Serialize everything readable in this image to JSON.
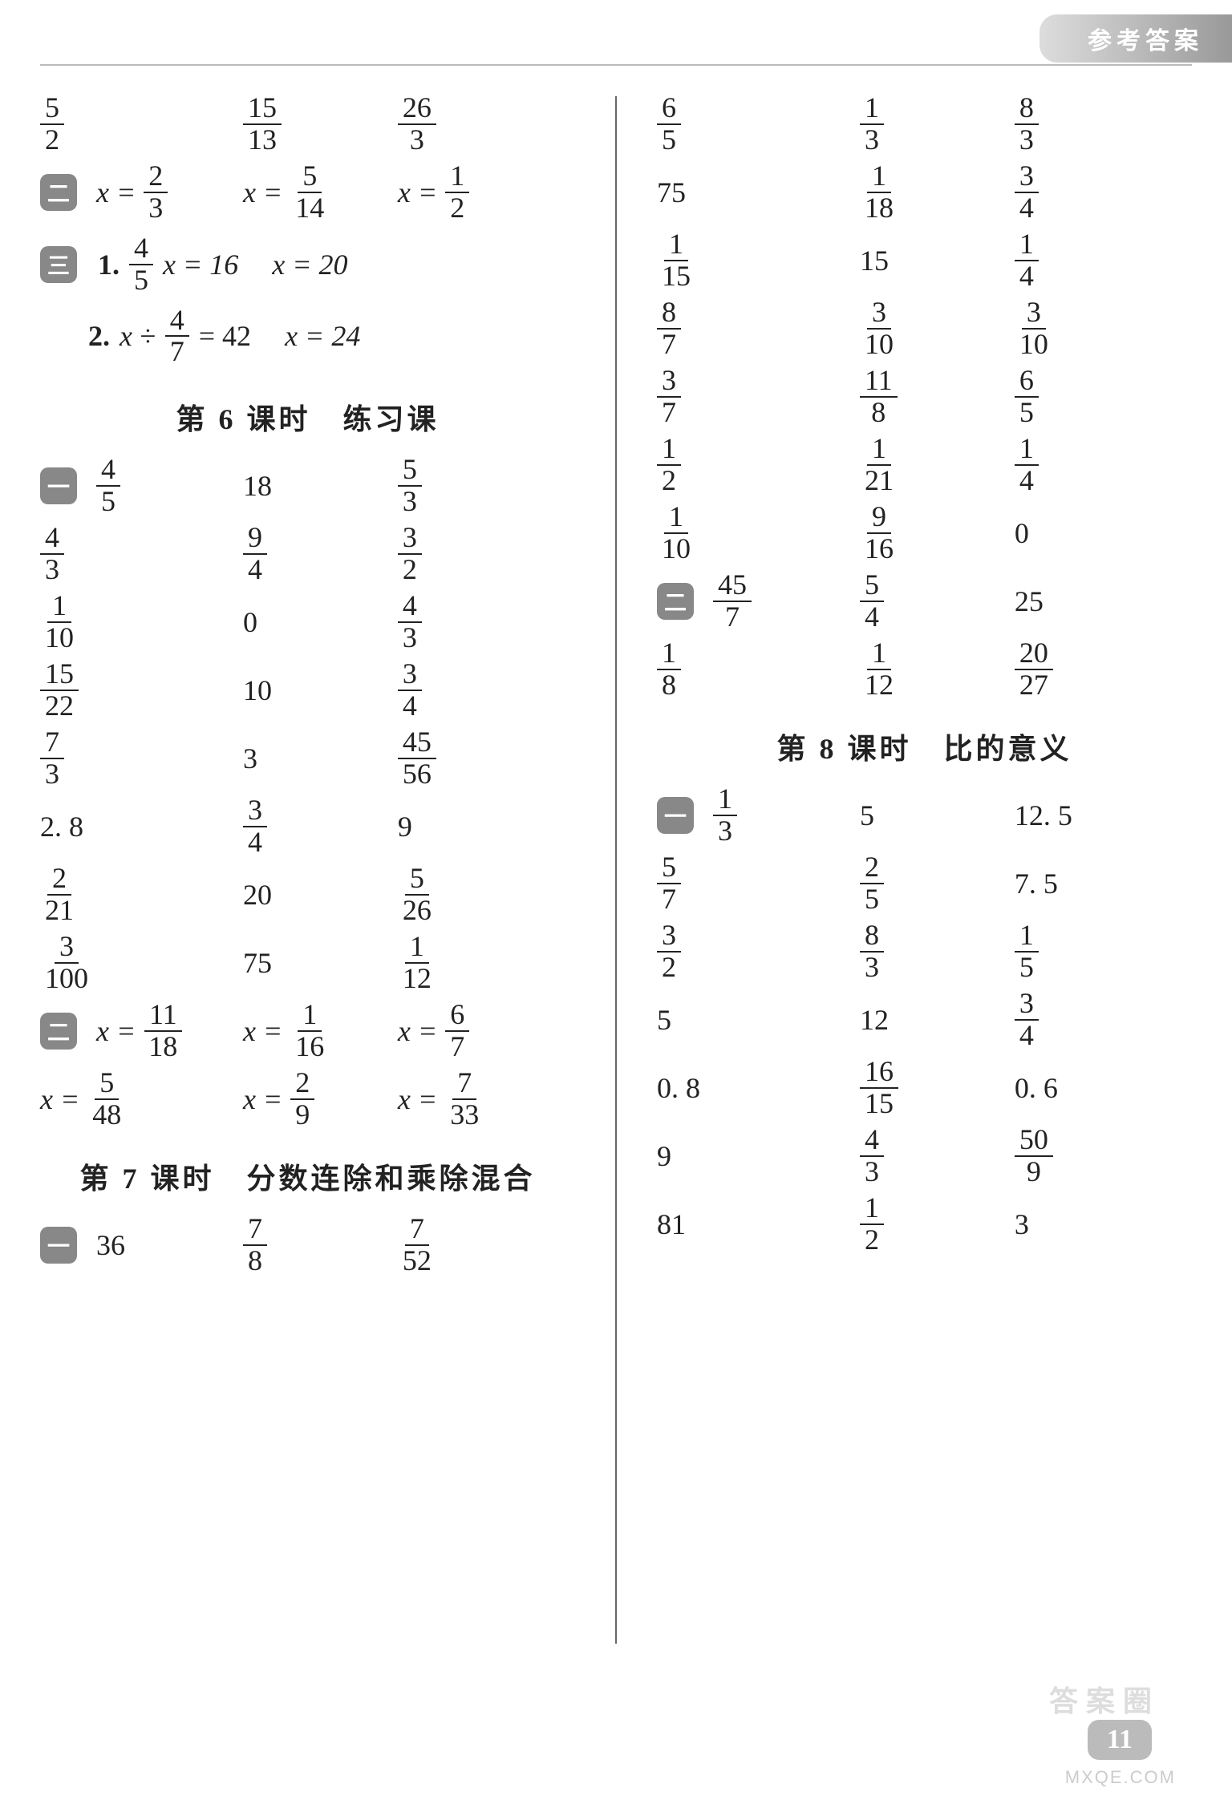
{
  "header": {
    "label": "参考答案"
  },
  "pageNumber": "11",
  "watermark": "MXQE.COM",
  "wm2": "答案圈",
  "sections": {
    "s6": {
      "title": "第 6 课时　练习课"
    },
    "s7": {
      "title": "第 7 课时　分数连除和乘除混合"
    },
    "s8": {
      "title": "第 8 课时　比的意义"
    }
  },
  "left": {
    "topRow": [
      {
        "n": "5",
        "d": "2"
      },
      {
        "n": "15",
        "d": "13"
      },
      {
        "n": "26",
        "d": "3"
      }
    ],
    "eqRow2": {
      "badge": "二",
      "items": [
        {
          "lhs": "x =",
          "n": "2",
          "d": "3"
        },
        {
          "lhs": "x =",
          "n": "5",
          "d": "14"
        },
        {
          "lhs": "x =",
          "n": "1",
          "d": "2"
        }
      ]
    },
    "eq3": {
      "badge": "三",
      "l1": {
        "num": "1.",
        "fn": "4",
        "fd": "5",
        "mid": "x = 16",
        "res": "x = 20"
      },
      "l2": {
        "num": "2.",
        "pre": "x ÷",
        "fn": "4",
        "fd": "7",
        "mid": "= 42",
        "res": "x = 24"
      }
    },
    "grid6": {
      "badge": "一",
      "rows": [
        [
          {
            "n": "4",
            "d": "5"
          },
          {
            "t": "18"
          },
          {
            "n": "5",
            "d": "3"
          }
        ],
        [
          {
            "n": "4",
            "d": "3"
          },
          {
            "n": "9",
            "d": "4"
          },
          {
            "n": "3",
            "d": "2"
          }
        ],
        [
          {
            "n": "1",
            "d": "10"
          },
          {
            "t": "0"
          },
          {
            "n": "4",
            "d": "3"
          }
        ],
        [
          {
            "n": "15",
            "d": "22"
          },
          {
            "t": "10"
          },
          {
            "n": "3",
            "d": "4"
          }
        ],
        [
          {
            "n": "7",
            "d": "3"
          },
          {
            "t": "3"
          },
          {
            "n": "45",
            "d": "56"
          }
        ],
        [
          {
            "t": "2. 8"
          },
          {
            "n": "3",
            "d": "4"
          },
          {
            "t": "9"
          }
        ],
        [
          {
            "n": "2",
            "d": "21"
          },
          {
            "t": "20"
          },
          {
            "n": "5",
            "d": "26"
          }
        ],
        [
          {
            "n": "3",
            "d": "100"
          },
          {
            "t": "75"
          },
          {
            "n": "1",
            "d": "12"
          }
        ]
      ]
    },
    "eqRow6b": {
      "badge": "二",
      "rows": [
        [
          {
            "lhs": "x =",
            "n": "11",
            "d": "18"
          },
          {
            "lhs": "x =",
            "n": "1",
            "d": "16"
          },
          {
            "lhs": "x =",
            "n": "6",
            "d": "7"
          }
        ],
        [
          {
            "lhs": "x =",
            "n": "5",
            "d": "48"
          },
          {
            "lhs": "x =",
            "n": "2",
            "d": "9"
          },
          {
            "lhs": "x =",
            "n": "7",
            "d": "33"
          }
        ]
      ]
    },
    "grid7": {
      "badge": "一",
      "rows": [
        [
          {
            "t": "36"
          },
          {
            "n": "7",
            "d": "8"
          },
          {
            "n": "7",
            "d": "52"
          }
        ]
      ]
    }
  },
  "right": {
    "grid7r": {
      "rows": [
        [
          {
            "n": "6",
            "d": "5"
          },
          {
            "n": "1",
            "d": "3"
          },
          {
            "n": "8",
            "d": "3"
          }
        ],
        [
          {
            "t": "75"
          },
          {
            "n": "1",
            "d": "18"
          },
          {
            "n": "3",
            "d": "4"
          }
        ],
        [
          {
            "n": "1",
            "d": "15"
          },
          {
            "t": "15"
          },
          {
            "n": "1",
            "d": "4"
          }
        ],
        [
          {
            "n": "8",
            "d": "7"
          },
          {
            "n": "3",
            "d": "10"
          },
          {
            "n": "3",
            "d": "10"
          }
        ],
        [
          {
            "n": "3",
            "d": "7"
          },
          {
            "n": "11",
            "d": "8"
          },
          {
            "n": "6",
            "d": "5"
          }
        ],
        [
          {
            "n": "1",
            "d": "2"
          },
          {
            "n": "1",
            "d": "21"
          },
          {
            "n": "1",
            "d": "4"
          }
        ],
        [
          {
            "n": "1",
            "d": "10"
          },
          {
            "n": "9",
            "d": "16"
          },
          {
            "t": "0"
          }
        ]
      ]
    },
    "eq7b": {
      "badge": "二",
      "rows": [
        [
          {
            "n": "45",
            "d": "7"
          },
          {
            "n": "5",
            "d": "4"
          },
          {
            "t": "25"
          }
        ],
        [
          {
            "n": "1",
            "d": "8"
          },
          {
            "n": "1",
            "d": "12"
          },
          {
            "n": "20",
            "d": "27"
          }
        ]
      ]
    },
    "grid8": {
      "badge": "一",
      "rows": [
        [
          {
            "n": "1",
            "d": "3"
          },
          {
            "t": "5"
          },
          {
            "t": "12. 5"
          }
        ],
        [
          {
            "n": "5",
            "d": "7"
          },
          {
            "n": "2",
            "d": "5"
          },
          {
            "t": "7. 5"
          }
        ],
        [
          {
            "n": "3",
            "d": "2"
          },
          {
            "n": "8",
            "d": "3"
          },
          {
            "n": "1",
            "d": "5"
          }
        ],
        [
          {
            "t": "5"
          },
          {
            "t": "12"
          },
          {
            "n": "3",
            "d": "4"
          }
        ],
        [
          {
            "t": "0. 8"
          },
          {
            "n": "16",
            "d": "15"
          },
          {
            "t": "0. 6"
          }
        ],
        [
          {
            "t": "9"
          },
          {
            "n": "4",
            "d": "3"
          },
          {
            "n": "50",
            "d": "9"
          }
        ],
        [
          {
            "t": "81"
          },
          {
            "n": "1",
            "d": "2"
          },
          {
            "t": "3"
          }
        ]
      ]
    }
  }
}
